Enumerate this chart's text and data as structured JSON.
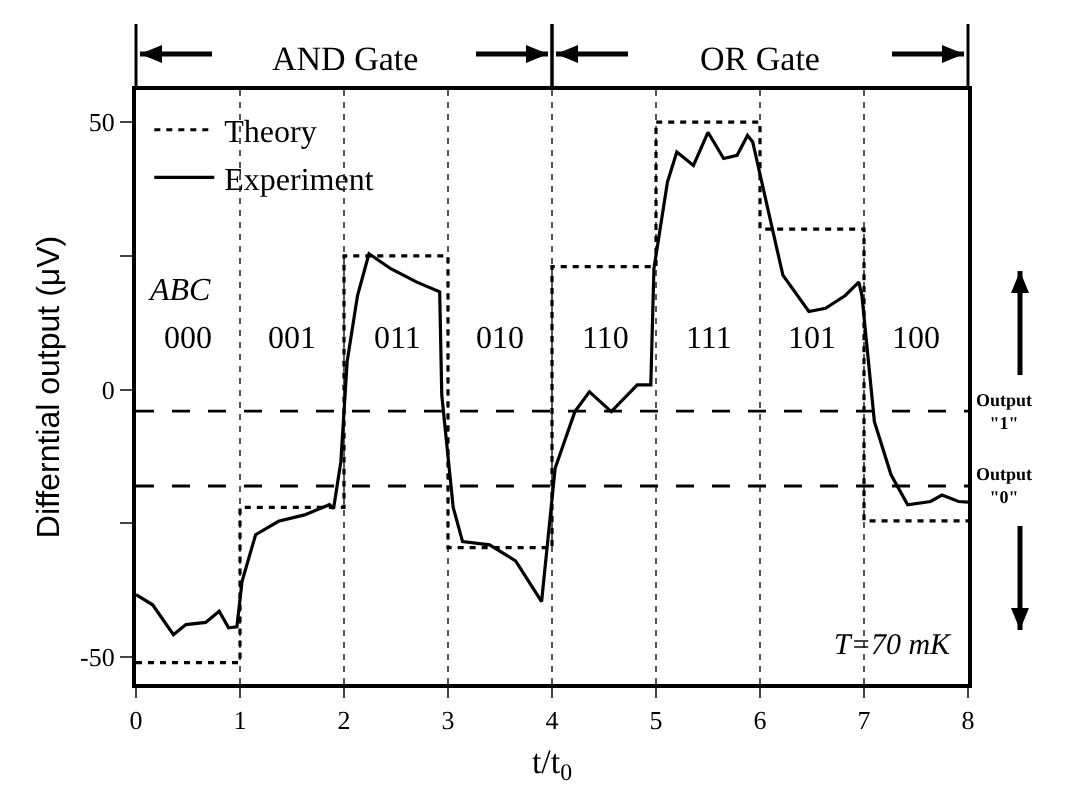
{
  "chart_data": {
    "type": "line",
    "xlabel": "t/t$_{0}$",
    "ylabel": "Differntial output (μV)",
    "xlim": [
      0,
      8
    ],
    "xticks": [
      0,
      1,
      2,
      3,
      4,
      5,
      6,
      7,
      8
    ],
    "ylim": [
      -55,
      56
    ],
    "yticks": [
      -50,
      {
        "value": -25,
        "label": null
      },
      0,
      {
        "value": 25,
        "label": null
      },
      50
    ],
    "grid": "x",
    "legend": "top left",
    "series": [
      {
        "name": "Theory",
        "type": "step",
        "color": "#000000",
        "line_style": "dotted",
        "x": [
          0,
          1,
          2,
          3,
          4,
          5,
          6,
          7,
          8
        ],
        "values": [
          -51,
          -22,
          25,
          -29.5,
          23,
          50,
          30,
          -24.5,
          -24.5
        ]
      },
      {
        "name": "Experiment",
        "color": "#000000",
        "line_style": "solid",
        "x": [
          0,
          0.16,
          0.36,
          0.48,
          0.67,
          0.8,
          0.89,
          0.97,
          1.02,
          1.15,
          1.37,
          1.62,
          1.86,
          1.9,
          1.97,
          2.03,
          2.13,
          2.24,
          2.45,
          2.7,
          2.92,
          2.94,
          3.05,
          3.14,
          3.4,
          3.65,
          3.9,
          4.03,
          4.22,
          4.36,
          4.57,
          4.82,
          4.95,
          4.98,
          5.11,
          5.2,
          5.36,
          5.5,
          5.65,
          5.78,
          5.88,
          5.93,
          6.06,
          6.22,
          6.47,
          6.63,
          6.82,
          6.95,
          6.98,
          7.1,
          7.26,
          7.42,
          7.64,
          7.75,
          7.91,
          8
        ],
        "values": [
          -38.3,
          -40.2,
          -45.8,
          -43.9,
          -43.5,
          -41.4,
          -44.5,
          -44.3,
          -35.8,
          -27.1,
          -24.6,
          -23.4,
          -21.5,
          -22.2,
          -13.4,
          5.2,
          17.6,
          25.4,
          22.6,
          20.1,
          18.3,
          -1,
          -22,
          -28.4,
          -29,
          -32,
          -39.6,
          -14.7,
          -4.1,
          -0.4,
          -4.1,
          0.9,
          0.9,
          22.6,
          38.8,
          44.4,
          41.9,
          48.1,
          43.2,
          43.8,
          47.5,
          46.3,
          35.1,
          21.4,
          14.6,
          15.2,
          17.6,
          20.1,
          17.6,
          -6,
          -15.9,
          -21.5,
          -20.9,
          -19.7,
          -20.9,
          -21
        ]
      }
    ],
    "ref_lines": [
      {
        "axis": "y",
        "value": -4,
        "label": "Output \"1\"",
        "line_style": "dashed"
      },
      {
        "axis": "y",
        "value": -18,
        "label": "Output \"0\"",
        "line_style": "dashed"
      }
    ],
    "annotations": [
      "AND Gate",
      "OR Gate",
      "ABC",
      "000",
      "001",
      "011",
      "010",
      "110",
      "111",
      "101",
      "100",
      "T=70 mK"
    ]
  }
}
